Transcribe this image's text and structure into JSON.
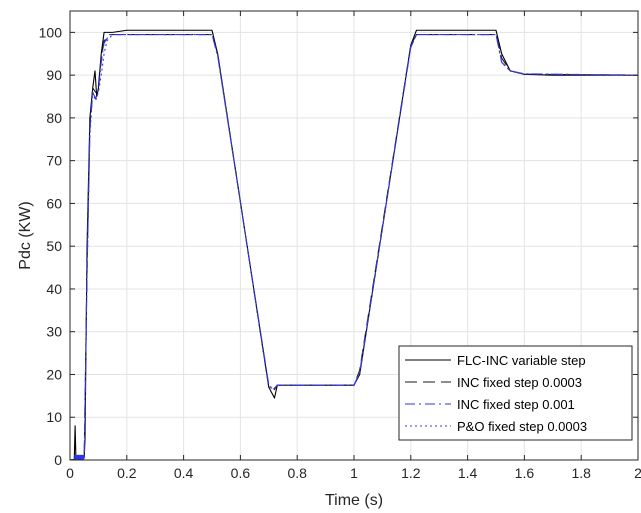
{
  "chart_data": {
    "type": "line",
    "title": "",
    "xlabel": "Time (s)",
    "ylabel": "Pdc (KW)",
    "xlim": [
      0,
      2
    ],
    "ylim": [
      0,
      105
    ],
    "xticks": [
      0,
      0.2,
      0.4,
      0.6,
      0.8,
      1,
      1.2,
      1.4,
      1.6,
      1.8,
      2
    ],
    "xtick_labels": [
      "0",
      "0.2",
      "0.4",
      "0.6",
      "0.8",
      "1",
      "1.2",
      "1.4",
      "1.6",
      "1.8",
      "2"
    ],
    "yticks": [
      0,
      10,
      20,
      30,
      40,
      50,
      60,
      70,
      80,
      90,
      100
    ],
    "ytick_labels": [
      "0",
      "10",
      "20",
      "30",
      "40",
      "50",
      "60",
      "70",
      "80",
      "90",
      "100"
    ],
    "grid": true,
    "legend_position": "bottom-right",
    "series": [
      {
        "name": "FLC-INC variable step",
        "color": "#000000",
        "dash": "solid",
        "x": [
          0,
          0.015,
          0.018,
          0.021,
          0.025,
          0.05,
          0.053,
          0.06,
          0.07,
          0.08,
          0.088,
          0.094,
          0.1,
          0.11,
          0.12,
          0.13,
          0.15,
          0.2,
          0.25,
          0.5,
          0.52,
          0.7,
          0.72,
          0.73,
          0.75,
          1.0,
          1.02,
          1.2,
          1.22,
          1.25,
          1.5,
          1.52,
          1.55,
          1.6,
          1.7,
          2.0
        ],
        "y": [
          0,
          0,
          8,
          0,
          0.5,
          0.5,
          5,
          50,
          80,
          87,
          91,
          85,
          87,
          95,
          100,
          100,
          100,
          100.5,
          100.5,
          100.5,
          95,
          17,
          14.5,
          17.5,
          17.5,
          17.5,
          20,
          97,
          100.5,
          100.5,
          100.5,
          95,
          91,
          90.2,
          90,
          90
        ]
      },
      {
        "name": "INC fixed step 0.0003",
        "color": "#1a1a1a",
        "dash": "12,6",
        "x": [
          0,
          0.05,
          0.06,
          0.07,
          0.08,
          0.09,
          0.1,
          0.11,
          0.12,
          0.14,
          0.2,
          0.5,
          0.52,
          0.7,
          0.715,
          0.73,
          1.0,
          1.02,
          1.2,
          1.22,
          1.5,
          1.52,
          1.55,
          1.6,
          2.0
        ],
        "y": [
          0,
          0.5,
          45,
          78,
          87,
          86,
          87.5,
          94,
          98,
          99.5,
          99.5,
          99.5,
          95,
          17,
          16,
          17.5,
          17.5,
          21,
          97,
          99.5,
          99.5,
          94,
          91,
          90.2,
          90
        ]
      },
      {
        "name": "INC fixed step 0.001",
        "color": "#2b35e6",
        "dash": "10,4,2,4",
        "x": [
          0,
          0.05,
          0.06,
          0.07,
          0.08,
          0.09,
          0.1,
          0.11,
          0.12,
          0.14,
          0.2,
          0.5,
          0.52,
          0.7,
          0.715,
          0.73,
          1.0,
          1.02,
          1.2,
          1.22,
          1.5,
          1.52,
          1.55,
          1.6,
          2.0
        ],
        "y": [
          0,
          0.5,
          44,
          77,
          86,
          84.5,
          86.5,
          93,
          97.5,
          99.5,
          99.5,
          99.5,
          94.5,
          17.5,
          16.5,
          17.5,
          17.5,
          20.5,
          96.5,
          99.5,
          99.5,
          93,
          91,
          90.3,
          90
        ]
      },
      {
        "name": "P&O fixed step 0.0003",
        "color": "#3a3ae0",
        "dash": "2,3",
        "x": [
          0,
          0.05,
          0.06,
          0.07,
          0.08,
          0.09,
          0.1,
          0.11,
          0.12,
          0.13,
          0.15,
          0.2,
          0.5,
          0.52,
          0.7,
          0.715,
          0.73,
          1.0,
          1.02,
          1.2,
          1.22,
          1.5,
          1.52,
          1.55,
          1.6,
          2.0
        ],
        "y": [
          0,
          0.5,
          43,
          76,
          86,
          84,
          86,
          90,
          95,
          98,
          99.5,
          99.5,
          99.5,
          94.5,
          17.5,
          16.5,
          17.5,
          17.5,
          20.5,
          96.5,
          99.5,
          99.5,
          93,
          91,
          90.3,
          90
        ]
      }
    ]
  }
}
